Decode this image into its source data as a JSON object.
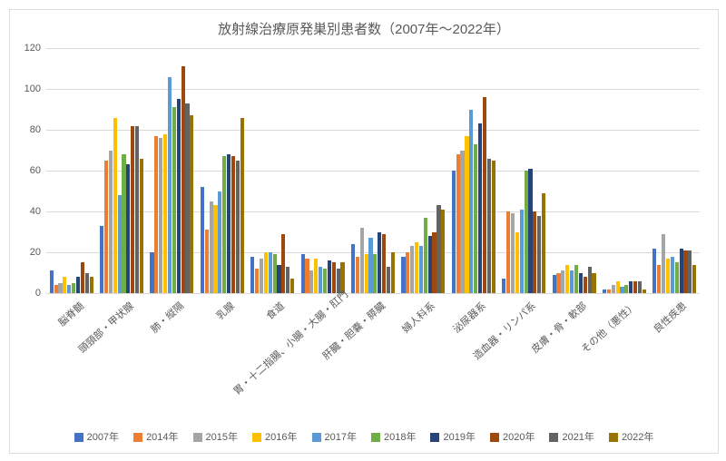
{
  "chart": {
    "type": "bar",
    "title": "放射線治療原発巣別患者数（2007年～2022年）",
    "title_fontsize": 15,
    "title_color": "#595959",
    "background_color": "#ffffff",
    "plot_border_color": "#d9d9d9",
    "grid_color": "#d9d9d9",
    "axis_font_color": "#595959",
    "axis_fontsize": 11,
    "ylim": [
      0,
      120
    ],
    "ytick_step": 20,
    "yticks": [
      0,
      20,
      40,
      60,
      80,
      100,
      120
    ],
    "series": [
      {
        "name": "2007年",
        "color": "#4472c4"
      },
      {
        "name": "2014年",
        "color": "#ed7d31"
      },
      {
        "name": "2015年",
        "color": "#a5a5a5"
      },
      {
        "name": "2016年",
        "color": "#ffc000"
      },
      {
        "name": "2017年",
        "color": "#5b9bd5"
      },
      {
        "name": "2018年",
        "color": "#70ad47"
      },
      {
        "name": "2019年",
        "color": "#264478"
      },
      {
        "name": "2020年",
        "color": "#9e480e"
      },
      {
        "name": "2021年",
        "color": "#636363"
      },
      {
        "name": "2022年",
        "color": "#997300"
      }
    ],
    "categories": [
      "脳脊髄",
      "頭頸部・甲状腺",
      "肺・縦隔",
      "乳腺",
      "食道",
      "胃・十二指腸、小腸・大腸・肛門",
      "肝臓・胆嚢・膵臓",
      "婦人科系",
      "泌尿器系",
      "造血器・リンパ系",
      "皮膚・骨・軟部",
      "その他（悪性）",
      "良性疾患"
    ],
    "values": [
      [
        11,
        4,
        5,
        8,
        4,
        5,
        8,
        15,
        10,
        8
      ],
      [
        33,
        65,
        70,
        86,
        48,
        68,
        63,
        82,
        82,
        66
      ],
      [
        20,
        77,
        76,
        78,
        106,
        91,
        95,
        111,
        93,
        87
      ],
      [
        52,
        31,
        45,
        43,
        50,
        67,
        68,
        67,
        65,
        86
      ],
      [
        18,
        12,
        17,
        20,
        20,
        19,
        14,
        29,
        13,
        7
      ],
      [
        19,
        17,
        11,
        17,
        13,
        12,
        16,
        15,
        12,
        15
      ],
      [
        24,
        18,
        32,
        19,
        27,
        19,
        30,
        29,
        13,
        20
      ],
      [
        18,
        20,
        23,
        25,
        23,
        37,
        28,
        30,
        43,
        41
      ],
      [
        60,
        68,
        70,
        77,
        90,
        73,
        83,
        96,
        66,
        65
      ],
      [
        7,
        40,
        39,
        30,
        41,
        60,
        61,
        40,
        38,
        49
      ],
      [
        9,
        10,
        11,
        14,
        11,
        14,
        10,
        8,
        13,
        10
      ],
      [
        2,
        2,
        4,
        6,
        3,
        4,
        6,
        6,
        6,
        2
      ],
      [
        22,
        14,
        29,
        17,
        18,
        15,
        22,
        21,
        21,
        14
      ]
    ],
    "bar_gap_ratio": 0.15,
    "group_gap_ratio": 0.06,
    "legend_position": "bottom"
  }
}
